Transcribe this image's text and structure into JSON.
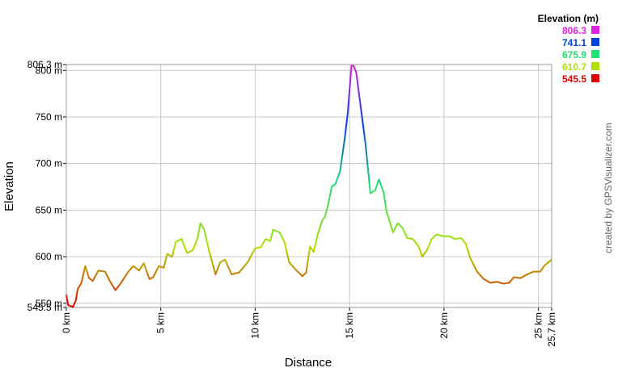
{
  "chart_data": {
    "type": "line",
    "x_label": "Distance",
    "y_label": "Elevation",
    "credit": "created by GPSVisualizer.com",
    "legend_title": "Elevation (m)",
    "color_scale": [
      {
        "value": 806.3,
        "color": "#e020e0"
      },
      {
        "value": 741.1,
        "color": "#0040e0"
      },
      {
        "value": 675.9,
        "color": "#20e070"
      },
      {
        "value": 610.7,
        "color": "#b0e000"
      },
      {
        "value": 545.5,
        "color": "#e00000"
      }
    ],
    "xlim": [
      0,
      25.7
    ],
    "ylim": [
      545.5,
      806.3
    ],
    "xticks": [
      {
        "value": 0,
        "label": "0 km"
      },
      {
        "value": 5,
        "label": "5 km"
      },
      {
        "value": 10,
        "label": "10 km"
      },
      {
        "value": 15,
        "label": "15 km"
      },
      {
        "value": 20,
        "label": "20 km"
      },
      {
        "value": 25,
        "label": "25 km"
      },
      {
        "value": 25.7,
        "label": "25.7 km"
      }
    ],
    "yticks": [
      {
        "value": 545.5,
        "label": "545.5 m"
      },
      {
        "value": 550,
        "label": "550 m"
      },
      {
        "value": 600,
        "label": "600 m"
      },
      {
        "value": 650,
        "label": "650 m"
      },
      {
        "value": 700,
        "label": "700 m"
      },
      {
        "value": 750,
        "label": "750 m"
      },
      {
        "value": 800,
        "label": "800 m"
      },
      {
        "value": 806.3,
        "label": "806.3 m"
      }
    ],
    "grid": true,
    "x": [
      0,
      0.1,
      0.35,
      0.5,
      0.6,
      0.8,
      1.0,
      1.2,
      1.4,
      1.7,
      2.05,
      2.3,
      2.6,
      2.9,
      3.25,
      3.55,
      3.85,
      4.1,
      4.4,
      4.6,
      4.9,
      5.15,
      5.35,
      5.6,
      5.8,
      6.1,
      6.4,
      6.7,
      6.95,
      7.1,
      7.3,
      7.55,
      7.9,
      8.15,
      8.4,
      8.75,
      9.15,
      9.6,
      10.0,
      10.3,
      10.55,
      10.8,
      10.95,
      11.3,
      11.55,
      11.8,
      12.15,
      12.5,
      12.7,
      12.9,
      13.1,
      13.3,
      13.55,
      13.7,
      13.9,
      14.05,
      14.25,
      14.5,
      14.75,
      14.9,
      15.1,
      15.2,
      15.35,
      15.6,
      15.85,
      16.1,
      16.35,
      16.55,
      16.8,
      16.95,
      17.3,
      17.55,
      17.8,
      18.05,
      18.35,
      18.65,
      18.85,
      19.1,
      19.35,
      19.6,
      19.95,
      20.3,
      20.55,
      20.9,
      21.15,
      21.4,
      21.75,
      22.1,
      22.45,
      22.8,
      23.15,
      23.45,
      23.7,
      24.05,
      24.4,
      24.75,
      25.1,
      25.3,
      25.7
    ],
    "values": [
      559,
      548,
      546,
      553,
      565,
      572,
      590,
      577,
      574,
      585,
      584,
      574,
      564,
      572,
      583,
      590,
      585,
      593,
      576,
      578,
      590,
      588,
      603,
      600,
      616,
      619,
      604,
      607,
      620,
      636,
      629,
      607,
      581,
      594,
      597,
      581,
      583,
      594,
      609,
      610,
      619,
      617,
      629,
      626,
      616,
      594,
      586,
      579,
      583,
      611,
      605,
      623,
      639,
      643,
      659,
      675,
      678,
      692,
      728,
      754,
      805,
      805,
      798,
      759,
      720,
      668,
      671,
      683,
      669,
      649,
      626,
      636,
      631,
      620,
      619,
      611,
      600,
      607,
      619,
      624,
      622,
      622,
      619,
      620,
      614,
      598,
      584,
      576,
      572,
      573,
      571,
      572,
      578,
      577,
      581,
      584,
      584,
      590,
      597
    ]
  }
}
